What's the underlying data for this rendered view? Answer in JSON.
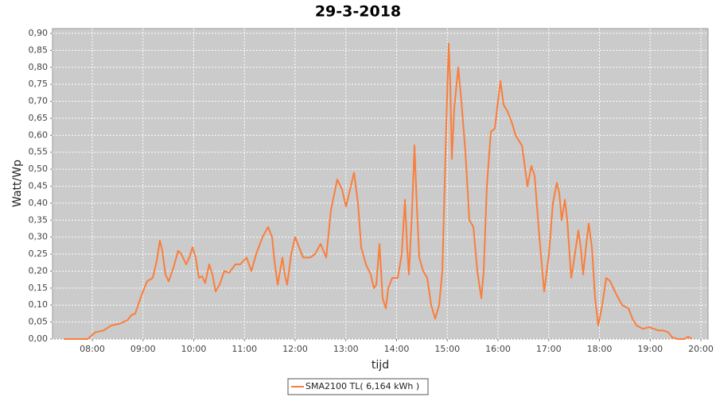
{
  "chart_data": {
    "type": "line",
    "title": "29-3-2018",
    "x_label": "tijd",
    "y_label": "Watt/Wp",
    "grid": true,
    "legend": "bottom",
    "xlim": [
      7.216,
      20.141
    ],
    "xticks": [
      {
        "value": 8,
        "label": "08:00"
      },
      {
        "value": 9,
        "label": "09:00"
      },
      {
        "value": 10,
        "label": "10:00"
      },
      {
        "value": 11,
        "label": "11:00"
      },
      {
        "value": 12,
        "label": "12:00"
      },
      {
        "value": 13,
        "label": "13:00"
      },
      {
        "value": 14,
        "label": "14:00"
      },
      {
        "value": 15,
        "label": "15:00"
      },
      {
        "value": 16,
        "label": "16:00"
      },
      {
        "value": 17,
        "label": "17:00"
      },
      {
        "value": 18,
        "label": "18:00"
      },
      {
        "value": 19,
        "label": "19:00"
      },
      {
        "value": 20,
        "label": "20:00"
      }
    ],
    "ylim": [
      0,
      0.914
    ],
    "yticks": [
      {
        "value": 0,
        "label": "0,00"
      },
      {
        "value": 0.05,
        "label": "0,05"
      },
      {
        "value": 0.1,
        "label": "0,10"
      },
      {
        "value": 0.15,
        "label": "0,15"
      },
      {
        "value": 0.2,
        "label": "0,20"
      },
      {
        "value": 0.25,
        "label": "0,25"
      },
      {
        "value": 0.3,
        "label": "0,30"
      },
      {
        "value": 0.35,
        "label": "0,35"
      },
      {
        "value": 0.4,
        "label": "0,40"
      },
      {
        "value": 0.45,
        "label": "0,45"
      },
      {
        "value": 0.5,
        "label": "0,50"
      },
      {
        "value": 0.55,
        "label": "0,55"
      },
      {
        "value": 0.6,
        "label": "0,60"
      },
      {
        "value": 0.65,
        "label": "0,65"
      },
      {
        "value": 0.7,
        "label": "0,70"
      },
      {
        "value": 0.75,
        "label": "0,75"
      },
      {
        "value": 0.8,
        "label": "0,80"
      },
      {
        "value": 0.85,
        "label": "0,85"
      },
      {
        "value": 0.9,
        "label": "0,90"
      }
    ],
    "x": [
      7.435,
      7.906,
      8.063,
      8.22,
      8.376,
      8.533,
      8.69,
      8.769,
      8.847,
      8.973,
      9.082,
      9.192,
      9.271,
      9.333,
      9.38,
      9.443,
      9.506,
      9.6,
      9.694,
      9.757,
      9.851,
      9.914,
      9.976,
      10.039,
      10.102,
      10.165,
      10.227,
      10.306,
      10.369,
      10.431,
      10.51,
      10.604,
      10.698,
      10.824,
      10.918,
      11.043,
      11.137,
      11.231,
      11.357,
      11.467,
      11.545,
      11.592,
      11.655,
      11.749,
      11.796,
      11.843,
      11.922,
      12.0,
      12.078,
      12.157,
      12.298,
      12.392,
      12.502,
      12.612,
      12.706,
      12.831,
      12.925,
      13.004,
      13.082,
      13.161,
      13.239,
      13.302,
      13.396,
      13.49,
      13.553,
      13.6,
      13.663,
      13.725,
      13.788,
      13.835,
      13.914,
      14.024,
      14.102,
      14.165,
      14.212,
      14.243,
      14.306,
      14.353,
      14.4,
      14.447,
      14.525,
      14.604,
      14.682,
      14.761,
      14.839,
      14.902,
      14.965,
      15.027,
      15.059,
      15.09,
      15.137,
      15.216,
      15.278,
      15.357,
      15.435,
      15.514,
      15.592,
      15.671,
      15.718,
      15.78,
      15.859,
      15.937,
      16.0,
      16.047,
      16.11,
      16.188,
      16.267,
      16.345,
      16.471,
      16.518,
      16.58,
      16.659,
      16.722,
      16.816,
      16.91,
      17.004,
      17.082,
      17.161,
      17.208,
      17.255,
      17.318,
      17.365,
      17.443,
      17.506,
      17.584,
      17.631,
      17.678,
      17.741,
      17.788,
      17.851,
      17.914,
      17.976,
      18.055,
      18.133,
      18.212,
      18.337,
      18.447,
      18.573,
      18.651,
      18.729,
      18.855,
      18.98,
      19.075,
      19.169,
      19.263,
      19.357,
      19.435,
      19.545,
      19.671,
      19.749,
      19.827
    ],
    "series": [
      {
        "name": "SMA2100 TL( 6,164 kWh )",
        "color": "#fa7e3c",
        "values": [
          0,
          0,
          0.02,
          0.025,
          0.04,
          0.045,
          0.055,
          0.07,
          0.075,
          0.13,
          0.17,
          0.18,
          0.23,
          0.29,
          0.26,
          0.19,
          0.17,
          0.21,
          0.26,
          0.25,
          0.22,
          0.24,
          0.27,
          0.24,
          0.18,
          0.185,
          0.165,
          0.22,
          0.19,
          0.14,
          0.16,
          0.2,
          0.195,
          0.22,
          0.22,
          0.24,
          0.2,
          0.25,
          0.3,
          0.33,
          0.3,
          0.23,
          0.16,
          0.24,
          0.19,
          0.16,
          0.25,
          0.3,
          0.27,
          0.24,
          0.24,
          0.25,
          0.28,
          0.24,
          0.38,
          0.47,
          0.44,
          0.39,
          0.44,
          0.49,
          0.4,
          0.27,
          0.22,
          0.19,
          0.15,
          0.16,
          0.28,
          0.12,
          0.09,
          0.15,
          0.18,
          0.18,
          0.25,
          0.41,
          0.26,
          0.19,
          0.38,
          0.57,
          0.39,
          0.24,
          0.2,
          0.18,
          0.1,
          0.06,
          0.1,
          0.2,
          0.55,
          0.87,
          0.75,
          0.53,
          0.68,
          0.8,
          0.7,
          0.55,
          0.35,
          0.33,
          0.2,
          0.12,
          0.2,
          0.45,
          0.61,
          0.62,
          0.7,
          0.76,
          0.69,
          0.67,
          0.64,
          0.6,
          0.57,
          0.52,
          0.45,
          0.51,
          0.48,
          0.3,
          0.14,
          0.25,
          0.4,
          0.46,
          0.43,
          0.35,
          0.41,
          0.35,
          0.18,
          0.24,
          0.32,
          0.27,
          0.19,
          0.28,
          0.34,
          0.27,
          0.12,
          0.04,
          0.1,
          0.18,
          0.17,
          0.13,
          0.1,
          0.09,
          0.06,
          0.04,
          0.03,
          0.035,
          0.03,
          0.025,
          0.025,
          0.02,
          0.005,
          0,
          0,
          0.007,
          0
        ]
      }
    ]
  }
}
